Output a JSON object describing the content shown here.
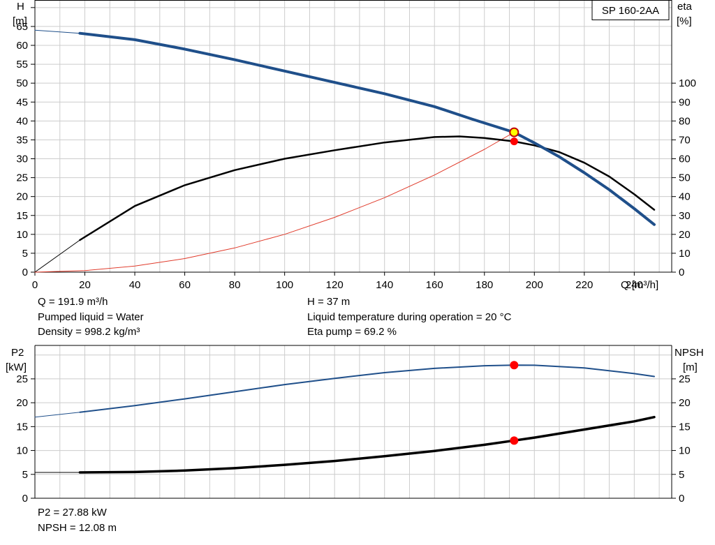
{
  "colors": {
    "head_curve": "#1f4f8a",
    "efficiency_curve": "#000000",
    "system_curve": "#e03a2a",
    "power_curve": "#1f4f8a",
    "npsh_curve": "#000000",
    "grid": "#cccccc",
    "marker_red": "#ff0000",
    "marker_yellow": "#ffff00"
  },
  "chart_data": [
    {
      "type": "line",
      "title": "SP 160-2AA",
      "xlabel": "Q [m³/h]",
      "ylabel_left_line1": "H",
      "ylabel_left_line2": "[m]",
      "ylabel_right_line1": "eta",
      "ylabel_right_line2": "[%]",
      "xlim": [
        0,
        255
      ],
      "ylim_left": [
        0,
        72
      ],
      "ylim_right": [
        0,
        144
      ],
      "x_ticks": [
        0,
        20,
        40,
        60,
        80,
        100,
        120,
        140,
        160,
        180,
        200,
        220,
        240
      ],
      "y_ticks_left": [
        0,
        5,
        10,
        15,
        20,
        25,
        30,
        35,
        40,
        45,
        50,
        55,
        60,
        65
      ],
      "y_ticks_right": [
        0,
        10,
        20,
        30,
        40,
        50,
        60,
        70,
        80,
        90,
        100
      ],
      "grid": true,
      "series": [
        {
          "key": "head",
          "axis": "left",
          "x": [
            0,
            18,
            40,
            60,
            80,
            100,
            120,
            140,
            160,
            175,
            191.9,
            200,
            210,
            220,
            230,
            240,
            248
          ],
          "values": [
            64,
            63.2,
            61.5,
            59,
            56.2,
            53.2,
            50.2,
            47.2,
            43.8,
            40.5,
            37,
            34.2,
            30.5,
            26.3,
            21.8,
            16.8,
            12.6
          ]
        },
        {
          "key": "efficiency",
          "axis": "right",
          "x": [
            0,
            18,
            40,
            60,
            80,
            100,
            120,
            140,
            160,
            170,
            180,
            191.9,
            200,
            210,
            220,
            230,
            240,
            248
          ],
          "values": [
            0,
            17,
            35,
            46,
            54,
            60,
            64.5,
            68.6,
            71.5,
            71.8,
            71,
            69.2,
            67.1,
            63.5,
            57.9,
            50.6,
            41.2,
            33
          ]
        },
        {
          "key": "system",
          "axis": "left",
          "x": [
            0,
            20,
            40,
            60,
            80,
            100,
            120,
            140,
            160,
            180,
            191.9
          ],
          "values": [
            0,
            0.4,
            1.6,
            3.6,
            6.4,
            10,
            14.5,
            19.7,
            25.7,
            32.5,
            37
          ]
        }
      ],
      "duty_point": {
        "x": 191.9,
        "head": 37,
        "eta": 69.2
      }
    },
    {
      "type": "line",
      "ylabel_left_line1": "P2",
      "ylabel_left_line2": "[kW]",
      "ylabel_right_line1": "NPSH",
      "ylabel_right_line2": "[m]",
      "xlim": [
        0,
        255
      ],
      "ylim_left": [
        0,
        32
      ],
      "ylim_right": [
        0,
        32
      ],
      "y_ticks_left": [
        0,
        5,
        10,
        15,
        20,
        25
      ],
      "y_ticks_right": [
        0,
        5,
        10,
        15,
        20,
        25
      ],
      "grid": true,
      "series": [
        {
          "key": "power",
          "axis": "left",
          "x": [
            0,
            18,
            40,
            60,
            80,
            100,
            120,
            140,
            160,
            180,
            191.9,
            200,
            220,
            240,
            248
          ],
          "values": [
            17,
            18,
            19.4,
            20.8,
            22.3,
            23.8,
            25.1,
            26.3,
            27.2,
            27.75,
            27.88,
            27.85,
            27.3,
            26.1,
            25.5
          ]
        },
        {
          "key": "npsh",
          "axis": "right",
          "x": [
            0,
            18,
            40,
            60,
            80,
            100,
            120,
            140,
            160,
            180,
            191.9,
            200,
            220,
            240,
            248
          ],
          "values": [
            5.4,
            5.4,
            5.5,
            5.8,
            6.3,
            7,
            7.8,
            8.8,
            9.9,
            11.2,
            12.08,
            12.7,
            14.4,
            16.1,
            17
          ]
        }
      ],
      "duty_point": {
        "x": 191.9,
        "p2": 27.88,
        "npsh": 12.08
      }
    }
  ],
  "info_top_left": [
    "Q = 191.9 m³/h",
    "Pumped liquid = Water",
    "Density = 998.2 kg/m³"
  ],
  "info_top_right": [
    "H = 37 m",
    "Liquid temperature during operation = 20 °C",
    "Eta pump = 69.2 %"
  ],
  "info_bottom": [
    "P2 = 27.88 kW",
    "NPSH = 12.08 m"
  ]
}
